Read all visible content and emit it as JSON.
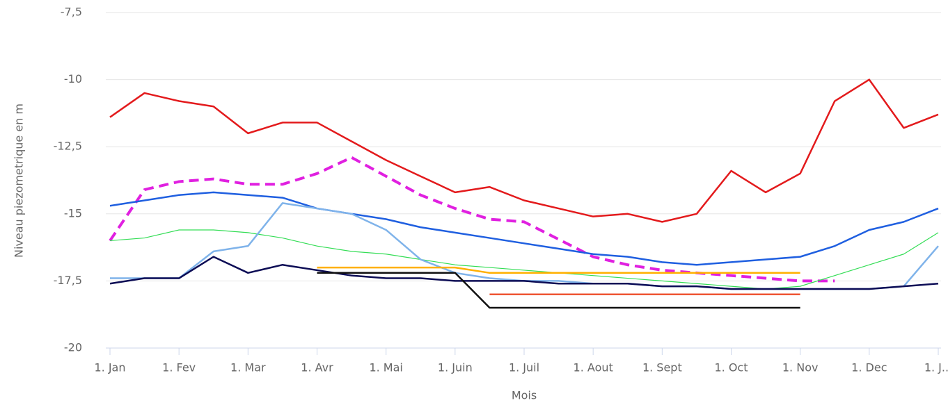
{
  "chart_data": {
    "type": "line",
    "x_label": "Mois",
    "y_label": "Niveau piezometrique en m",
    "x": [
      0,
      0.5,
      1,
      1.5,
      2,
      2.5,
      3,
      3.5,
      4,
      4.5,
      5,
      5.5,
      6,
      6.5,
      7,
      7.5,
      8,
      8.5,
      9,
      9.5,
      10,
      10.5,
      11,
      11.5,
      12
    ],
    "xlim": [
      0,
      12
    ],
    "xticks": [
      {
        "value": 0,
        "label": "1. Jan"
      },
      {
        "value": 1,
        "label": "1. Fev"
      },
      {
        "value": 2,
        "label": "1. Mar"
      },
      {
        "value": 3,
        "label": "1. Avr"
      },
      {
        "value": 4,
        "label": "1. Mai"
      },
      {
        "value": 5,
        "label": "1. Juin"
      },
      {
        "value": 6,
        "label": "1. Juil"
      },
      {
        "value": 7,
        "label": "1. Aout"
      },
      {
        "value": 8,
        "label": "1. Sept"
      },
      {
        "value": 9,
        "label": "1. Oct"
      },
      {
        "value": 10,
        "label": "1. Nov"
      },
      {
        "value": 11,
        "label": "1. Dec"
      },
      {
        "value": 12,
        "label": "1. J..."
      }
    ],
    "ylim": [
      -20,
      -7.5
    ],
    "yticks": [
      -20,
      {
        "value": -17.5,
        "label": "-17,5"
      },
      -15,
      {
        "value": -12.5,
        "label": "-12,5"
      },
      -10,
      {
        "value": -7.5,
        "label": "-7,5"
      }
    ],
    "grid": true,
    "series": [
      {
        "color": "#e31a1c",
        "line_width": 2.5,
        "dashed": false,
        "values": [
          -11.4,
          -10.5,
          -10.8,
          -11.0,
          -12.0,
          -11.6,
          -11.6,
          -12.3,
          -13.0,
          -13.6,
          -14.2,
          -14.0,
          -14.5,
          -14.8,
          -15.1,
          -15.0,
          -15.3,
          -15.0,
          -13.4,
          -14.2,
          -13.5,
          -10.8,
          -10.0,
          -11.8,
          -11.3
        ]
      },
      {
        "color": "#e020e0",
        "line_width": 4,
        "dashed": true,
        "values": [
          -16.0,
          -14.1,
          -13.8,
          -13.7,
          -13.9,
          -13.9,
          -13.5,
          -12.9,
          -13.6,
          -14.3,
          -14.8,
          -15.2,
          -15.3,
          -15.95,
          -16.6,
          -16.9,
          -17.1,
          -17.2,
          -17.3,
          -17.4,
          -17.5,
          -17.5,
          null,
          null,
          null
        ]
      },
      {
        "color": "#1f5fe0",
        "line_width": 2.5,
        "dashed": false,
        "values": [
          -14.7,
          -14.5,
          -14.3,
          -14.2,
          -14.3,
          -14.4,
          -14.8,
          -15.0,
          -15.2,
          -15.5,
          -15.7,
          -15.9,
          -16.1,
          -16.3,
          -16.5,
          -16.6,
          -16.8,
          -16.9,
          -16.8,
          -16.7,
          -16.6,
          -16.2,
          -15.6,
          -15.3,
          -14.8
        ]
      },
      {
        "color": "#33dd55",
        "line_width": 1.2,
        "dashed": false,
        "values": [
          -16.0,
          -15.9,
          -15.6,
          -15.6,
          -15.7,
          -15.9,
          -16.2,
          -16.4,
          -16.5,
          -16.7,
          -16.9,
          -17.0,
          -17.1,
          -17.2,
          -17.3,
          -17.4,
          -17.5,
          -17.6,
          -17.7,
          -17.8,
          -17.7,
          -17.3,
          -16.9,
          -16.5,
          -15.7
        ]
      },
      {
        "color": "#7fb3ea",
        "line_width": 2.5,
        "dashed": false,
        "values": [
          -17.4,
          -17.4,
          -17.4,
          -16.4,
          -16.2,
          -14.6,
          -14.8,
          -15.0,
          -15.6,
          -16.7,
          -17.2,
          -17.4,
          -17.5,
          -17.5,
          -17.6,
          -17.6,
          -17.7,
          -17.7,
          -17.8,
          -17.8,
          -17.8,
          -17.8,
          -17.8,
          -17.7,
          -16.2
        ]
      },
      {
        "color": "#0c0c55",
        "line_width": 2.5,
        "dashed": false,
        "values": [
          -17.6,
          -17.4,
          -17.4,
          -16.6,
          -17.2,
          -16.9,
          -17.1,
          -17.3,
          -17.4,
          -17.4,
          -17.5,
          -17.5,
          -17.5,
          -17.6,
          -17.6,
          -17.6,
          -17.7,
          -17.7,
          -17.8,
          -17.8,
          -17.8,
          -17.8,
          -17.8,
          -17.7,
          -17.6
        ]
      },
      {
        "color": "#ffb000",
        "line_width": 2.5,
        "dashed": false,
        "values": [
          null,
          null,
          null,
          null,
          null,
          null,
          -17.0,
          -17.0,
          -17.0,
          -17.0,
          -17.0,
          -17.2,
          -17.2,
          -17.2,
          -17.2,
          -17.2,
          -17.2,
          -17.2,
          -17.2,
          -17.2,
          -17.2,
          null,
          null,
          null,
          null
        ]
      },
      {
        "color": "#111111",
        "line_width": 2.5,
        "dashed": false,
        "values": [
          null,
          null,
          null,
          null,
          null,
          null,
          -17.2,
          -17.2,
          -17.2,
          -17.2,
          -17.2,
          -18.5,
          -18.5,
          -18.5,
          -18.5,
          -18.5,
          -18.5,
          -18.5,
          -18.5,
          -18.5,
          -18.5,
          null,
          null,
          null,
          null
        ]
      },
      {
        "color": "#ee5533",
        "line_width": 2.5,
        "dashed": false,
        "values": [
          null,
          null,
          null,
          null,
          null,
          null,
          null,
          null,
          null,
          null,
          null,
          -18.0,
          -18.0,
          -18.0,
          -18.0,
          -18.0,
          -18.0,
          -18.0,
          -18.0,
          -18.0,
          -18.0,
          null,
          null,
          null,
          null
        ]
      }
    ]
  }
}
